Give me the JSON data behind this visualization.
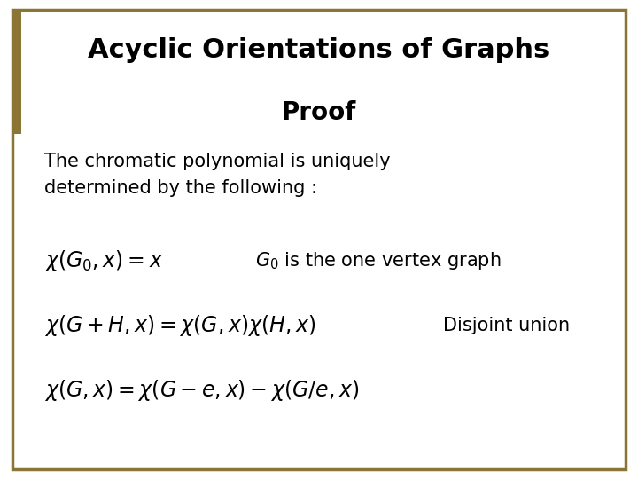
{
  "background_color": "#ffffff",
  "border_color": "#8B7536",
  "title": "Acyclic Orientations of Graphs",
  "subtitle": "Proof",
  "body_text": "The chromatic polynomial is uniquely\ndetermined by the following :",
  "formula1": "$\\chi(G_0, x) = x$",
  "formula1_note": "$G_0$ is the one vertex graph",
  "formula2": "$\\chi(G+H,x) = \\chi(G,x)\\chi(H,x)$",
  "formula2_note": "Disjoint union",
  "formula3": "$\\chi(G,x) = \\chi(G-e,x) - \\chi(G/e,x)$",
  "title_fontsize": 22,
  "subtitle_fontsize": 20,
  "body_fontsize": 15,
  "formula_fontsize": 17,
  "note_fontsize": 15
}
